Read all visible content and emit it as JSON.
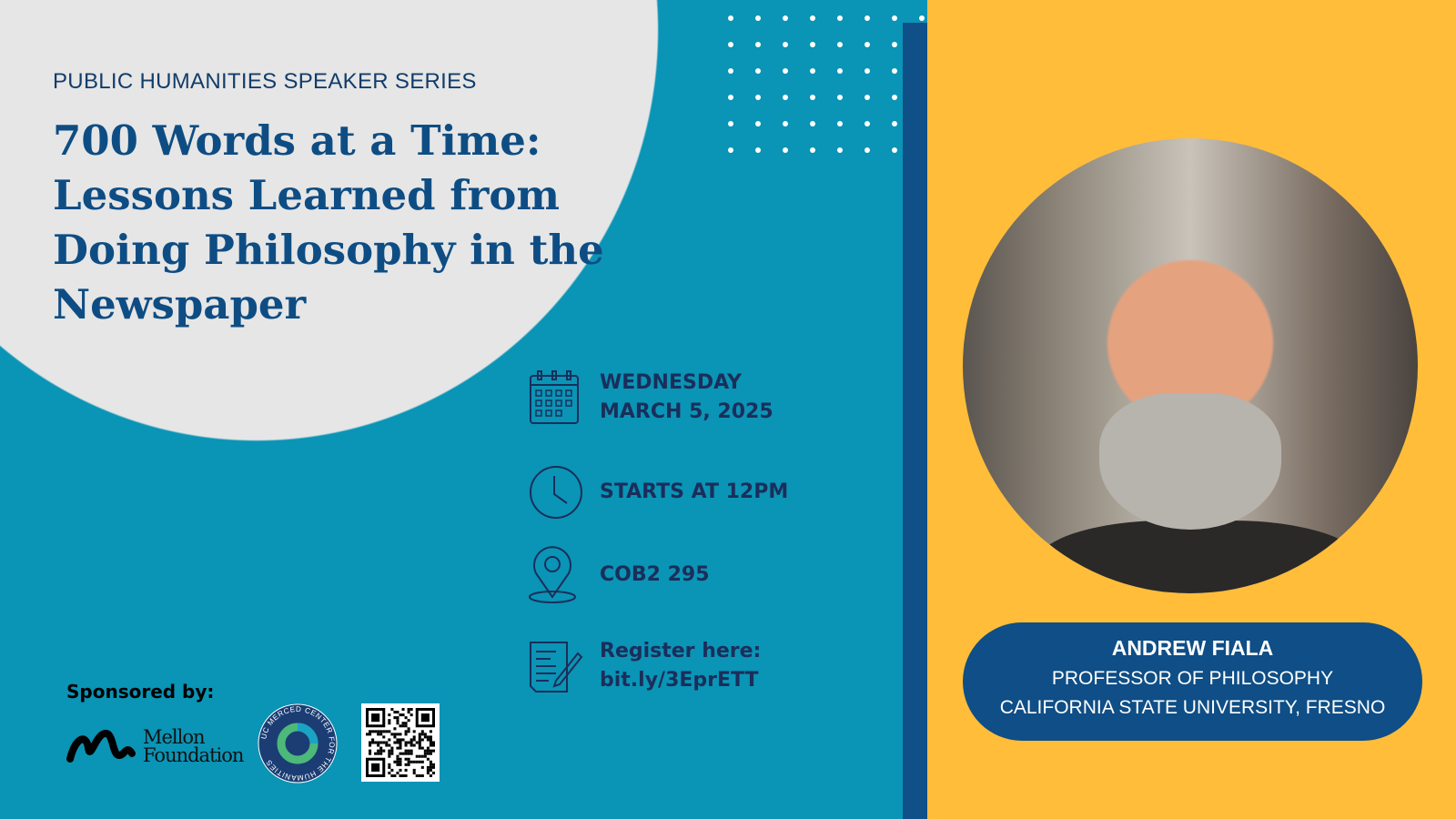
{
  "series_label": "PUBLIC HUMANITIES SPEAKER SERIES",
  "title": "700 Words at a Time: Lessons Learned from Doing Philosophy in the Newspaper",
  "details": {
    "date_day": "WEDNESDAY",
    "date": "MARCH 5, 2025",
    "time": "STARTS AT 12PM",
    "location": "COB2 295",
    "register_label": "Register here:",
    "register_link": "bit.ly/3EprETT"
  },
  "speaker": {
    "name": "ANDREW FIALA",
    "role": "PROFESSOR OF PHILOSOPHY",
    "affiliation": "CALIFORNIA STATE UNIVERSITY, FRESNO"
  },
  "sponsors": {
    "label": "Sponsored by:",
    "mellon": "Mellon Foundation",
    "ucm": "UC MERCED CENTER FOR THE HUMANITIES"
  },
  "colors": {
    "background": "#0a94b6",
    "accent_yellow": "#ffbd3a",
    "navy": "#0f5088",
    "text_dark": "#1b2e5a"
  }
}
